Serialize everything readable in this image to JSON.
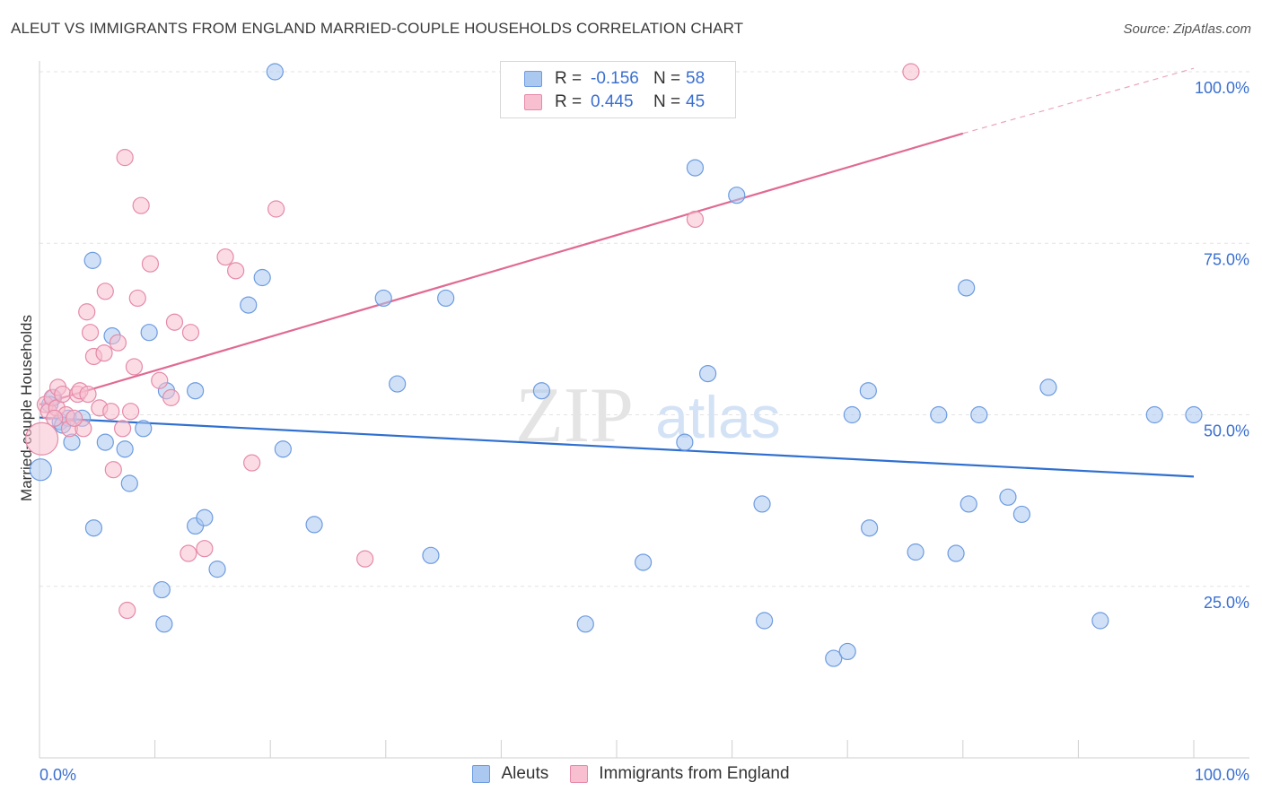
{
  "header": {
    "title": "ALEUT VS IMMIGRANTS FROM ENGLAND MARRIED-COUPLE HOUSEHOLDS CORRELATION CHART",
    "source": "Source: ZipAtlas.com"
  },
  "watermark": {
    "zip": "ZIP",
    "atlas": "atlas"
  },
  "legend": {
    "aleuts": {
      "r_label": "R =",
      "r_value": "-0.156",
      "n_label": "N =",
      "n_value": "58"
    },
    "england": {
      "r_label": "R =",
      "r_value": "0.445",
      "n_label": "N =",
      "n_value": "45"
    }
  },
  "colors": {
    "blue_fill": "#aac8f0",
    "blue_stroke": "#6d9be0",
    "blue_line": "#2f6fd0",
    "pink_fill": "#f7bfd0",
    "pink_stroke": "#e58aa8",
    "pink_line": "#e06a94",
    "grid": "#e3e3e3",
    "axis_text": "#3a6fd0"
  },
  "chart_data": {
    "type": "scatter",
    "title": "ALEUT VS IMMIGRANTS FROM ENGLAND MARRIED-COUPLE HOUSEHOLDS CORRELATION CHART",
    "xlabel": "",
    "ylabel": "Married-couple Households",
    "xlim": [
      0,
      100
    ],
    "ylim": [
      0,
      104
    ],
    "x_tick_labels": [
      "0.0%",
      "100.0%"
    ],
    "y_ticks": [
      25,
      50,
      75,
      100
    ],
    "y_tick_labels": [
      "25.0%",
      "50.0%",
      "75.0%",
      "100.0%"
    ],
    "grid": true,
    "series": [
      {
        "name": "Aleuts",
        "r": -0.156,
        "n": 58,
        "trend": {
          "x0": 0,
          "y0": 49.6,
          "x1": 100,
          "y1": 41.0
        },
        "points": [
          {
            "x": 0.1,
            "y": 42
          },
          {
            "x": 1.2,
            "y": 52.5
          },
          {
            "x": 1.8,
            "y": 49
          },
          {
            "x": 2.5,
            "y": 49.5
          },
          {
            "x": 2.8,
            "y": 46
          },
          {
            "x": 3.7,
            "y": 49.5
          },
          {
            "x": 4.6,
            "y": 72.5
          },
          {
            "x": 4.7,
            "y": 33.5
          },
          {
            "x": 5.7,
            "y": 46
          },
          {
            "x": 6.3,
            "y": 61.5
          },
          {
            "x": 7.4,
            "y": 45
          },
          {
            "x": 7.8,
            "y": 40
          },
          {
            "x": 9.0,
            "y": 48
          },
          {
            "x": 9.5,
            "y": 62
          },
          {
            "x": 10.6,
            "y": 24.5
          },
          {
            "x": 10.8,
            "y": 19.5
          },
          {
            "x": 11.0,
            "y": 53.5
          },
          {
            "x": 13.5,
            "y": 53.5
          },
          {
            "x": 13.5,
            "y": 33.8
          },
          {
            "x": 14.3,
            "y": 35
          },
          {
            "x": 15.4,
            "y": 27.5
          },
          {
            "x": 18.1,
            "y": 66
          },
          {
            "x": 19.3,
            "y": 70
          },
          {
            "x": 20.4,
            "y": 100
          },
          {
            "x": 21.1,
            "y": 45
          },
          {
            "x": 23.8,
            "y": 34
          },
          {
            "x": 29.8,
            "y": 67
          },
          {
            "x": 31.0,
            "y": 54.5
          },
          {
            "x": 33.9,
            "y": 29.5
          },
          {
            "x": 35.2,
            "y": 67
          },
          {
            "x": 43.5,
            "y": 53.5
          },
          {
            "x": 47.3,
            "y": 19.5
          },
          {
            "x": 52.3,
            "y": 28.5
          },
          {
            "x": 55.9,
            "y": 46
          },
          {
            "x": 56.8,
            "y": 86
          },
          {
            "x": 57.9,
            "y": 56
          },
          {
            "x": 60.4,
            "y": 82
          },
          {
            "x": 62.6,
            "y": 37
          },
          {
            "x": 62.8,
            "y": 20
          },
          {
            "x": 68.8,
            "y": 14.5
          },
          {
            "x": 70.0,
            "y": 15.5
          },
          {
            "x": 70.4,
            "y": 50
          },
          {
            "x": 71.8,
            "y": 53.5
          },
          {
            "x": 71.9,
            "y": 33.5
          },
          {
            "x": 75.9,
            "y": 30
          },
          {
            "x": 77.9,
            "y": 50
          },
          {
            "x": 79.4,
            "y": 29.8
          },
          {
            "x": 80.3,
            "y": 68.5
          },
          {
            "x": 80.5,
            "y": 37
          },
          {
            "x": 81.4,
            "y": 50
          },
          {
            "x": 83.9,
            "y": 38
          },
          {
            "x": 85.1,
            "y": 35.5
          },
          {
            "x": 87.4,
            "y": 54
          },
          {
            "x": 91.9,
            "y": 20
          },
          {
            "x": 96.6,
            "y": 50
          },
          {
            "x": 100.0,
            "y": 50
          },
          {
            "x": 0.9,
            "y": 51.5
          },
          {
            "x": 2.0,
            "y": 48.5
          }
        ]
      },
      {
        "name": "Immigrants from England",
        "r": 0.445,
        "n": 45,
        "trend": {
          "x0": 0,
          "y0": 51.5,
          "x1": 80,
          "y1": 91.0,
          "dash_x1": 100,
          "dash_y1": 100.5
        },
        "points": [
          {
            "x": 0.2,
            "y": 46.5
          },
          {
            "x": 0.5,
            "y": 51.5
          },
          {
            "x": 0.8,
            "y": 50.5
          },
          {
            "x": 1.1,
            "y": 52.5
          },
          {
            "x": 1.5,
            "y": 51
          },
          {
            "x": 1.6,
            "y": 54
          },
          {
            "x": 2.0,
            "y": 53
          },
          {
            "x": 2.3,
            "y": 50
          },
          {
            "x": 2.6,
            "y": 48
          },
          {
            "x": 3.3,
            "y": 53
          },
          {
            "x": 3.5,
            "y": 53.5
          },
          {
            "x": 3.8,
            "y": 48
          },
          {
            "x": 4.1,
            "y": 65
          },
          {
            "x": 4.2,
            "y": 53
          },
          {
            "x": 4.4,
            "y": 62
          },
          {
            "x": 4.7,
            "y": 58.5
          },
          {
            "x": 5.2,
            "y": 51
          },
          {
            "x": 5.6,
            "y": 59
          },
          {
            "x": 5.7,
            "y": 68
          },
          {
            "x": 6.2,
            "y": 50.5
          },
          {
            "x": 6.4,
            "y": 42
          },
          {
            "x": 6.8,
            "y": 60.5
          },
          {
            "x": 7.2,
            "y": 48
          },
          {
            "x": 7.4,
            "y": 87.5
          },
          {
            "x": 7.6,
            "y": 21.5
          },
          {
            "x": 7.9,
            "y": 50.5
          },
          {
            "x": 8.2,
            "y": 57
          },
          {
            "x": 8.5,
            "y": 67
          },
          {
            "x": 8.8,
            "y": 80.5
          },
          {
            "x": 9.6,
            "y": 72
          },
          {
            "x": 10.4,
            "y": 55
          },
          {
            "x": 11.4,
            "y": 52.5
          },
          {
            "x": 11.7,
            "y": 63.5
          },
          {
            "x": 12.9,
            "y": 29.8
          },
          {
            "x": 13.1,
            "y": 62
          },
          {
            "x": 14.3,
            "y": 30.5
          },
          {
            "x": 16.1,
            "y": 73
          },
          {
            "x": 17.0,
            "y": 71
          },
          {
            "x": 18.4,
            "y": 43
          },
          {
            "x": 20.5,
            "y": 80
          },
          {
            "x": 28.2,
            "y": 29
          },
          {
            "x": 56.8,
            "y": 78.5
          },
          {
            "x": 75.5,
            "y": 100
          },
          {
            "x": 3.0,
            "y": 49.5
          },
          {
            "x": 1.3,
            "y": 49.5
          }
        ]
      }
    ]
  },
  "bottom_legend": {
    "aleuts": "Aleuts",
    "england": "Immigrants from England"
  }
}
